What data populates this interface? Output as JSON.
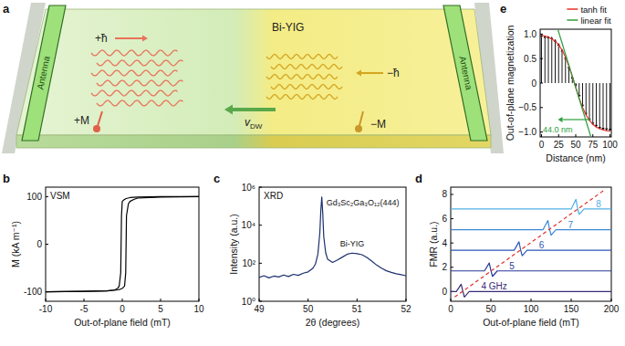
{
  "diagram": {
    "panel": "a",
    "material": "Bi-YIG",
    "antennas": [
      "Antenna",
      "Antenna"
    ],
    "spin_waves": [
      {
        "label": "+ħ",
        "color": "#e8735a"
      },
      {
        "label": "−ħ",
        "color": "#d4a520"
      }
    ],
    "domain_wall_velocity": {
      "symbol": "v",
      "subscript": "DW",
      "color": "#5aa84a"
    },
    "domains": [
      {
        "label": "+M",
        "color": "#e0604a"
      },
      {
        "label": "−M",
        "color": "#c9982a"
      }
    ]
  },
  "chart_data": [
    {
      "panel": "b",
      "type": "line",
      "annotation": "VSM",
      "x_label": "Out-of-plane field (mT)",
      "y_label": "M (kA m⁻¹)",
      "xlim": [
        -10,
        10
      ],
      "ylim": [
        -120,
        120
      ],
      "xticks": [
        -10,
        -5,
        0,
        5,
        10
      ],
      "yticks": [
        -100,
        0,
        100
      ],
      "series": [
        {
          "color": "#000000",
          "x": [
            -10,
            -5,
            -2,
            -1,
            -0.5,
            0,
            0.3,
            0.45,
            0.55,
            0.8,
            1,
            1.5,
            2,
            5,
            10
          ],
          "values": [
            -100,
            -99,
            -98,
            -97,
            -96,
            -93,
            -88,
            -60,
            60,
            85,
            90,
            94,
            97,
            99,
            100
          ]
        },
        {
          "color": "#000000",
          "x": [
            10,
            5,
            2,
            1,
            0.5,
            0.2,
            0,
            -0.1,
            -0.2,
            -0.4,
            -0.6,
            -1,
            -2,
            -5,
            -10
          ],
          "values": [
            100,
            100,
            99,
            98,
            96,
            93,
            90,
            60,
            -60,
            -88,
            -93,
            -96,
            -98,
            -99,
            -100
          ]
        }
      ]
    },
    {
      "panel": "c",
      "type": "line",
      "log": "y",
      "x_label": "2θ (degrees)",
      "y_label": "Intensity (a.u.)",
      "annotations": [
        {
          "text": "XRD"
        },
        {
          "text": "Gd₃Sc₂Ga₃O₁₂(444)",
          "x": 50.28
        },
        {
          "text": "Bi-YIG",
          "x": 50.9
        }
      ],
      "xlim": [
        49,
        52
      ],
      "ylim": [
        1,
        1000000
      ],
      "xticks": [
        49,
        50,
        51,
        52
      ],
      "yticks": [
        {
          "value": 1,
          "label": "10⁰"
        },
        {
          "value": 100,
          "label": "10²"
        },
        {
          "value": 10000,
          "label": "10⁴"
        },
        {
          "value": 1000000,
          "label": "10⁶"
        }
      ],
      "series": [
        {
          "color": "#1b2f6e",
          "x": [
            49.0,
            49.1,
            49.2,
            49.3,
            49.4,
            49.5,
            49.6,
            49.7,
            49.8,
            49.9,
            50.0,
            50.1,
            50.15,
            50.2,
            50.24,
            50.26,
            50.28,
            50.3,
            50.32,
            50.36,
            50.4,
            50.5,
            50.6,
            50.7,
            50.8,
            50.9,
            51.0,
            51.1,
            51.2,
            51.3,
            51.4,
            51.5,
            51.6,
            51.7,
            51.8,
            51.9,
            52.0
          ],
          "values": [
            18,
            22,
            17,
            21,
            19,
            24,
            20,
            26,
            23,
            30,
            35,
            55,
            90,
            300,
            4000,
            60000,
            300000,
            40000,
            2500,
            350,
            160,
            110,
            150,
            210,
            300,
            340,
            320,
            280,
            200,
            130,
            80,
            55,
            40,
            33,
            28,
            25,
            22
          ]
        }
      ]
    },
    {
      "panel": "d",
      "type": "line",
      "x_label": "Out-of-plane field (mT)",
      "y_label": "FMR (a.u.)",
      "xlim": [
        0,
        200
      ],
      "ylim": [
        -0.8,
        8.6
      ],
      "xticks": [
        0,
        50,
        100,
        150,
        200
      ],
      "yticks": [
        0,
        2,
        4,
        6,
        8
      ],
      "series": [
        {
          "name": "4 GHz",
          "color": "#3a2a78",
          "x": [
            0,
            7,
            13,
            15,
            17,
            23,
            200
          ],
          "values": [
            0,
            0,
            0.6,
            0.05,
            -0.45,
            0,
            0
          ]
        },
        {
          "name": "5",
          "color": "#28389a",
          "x": [
            0,
            42,
            48,
            50,
            52,
            58,
            200
          ],
          "values": [
            1.7,
            1.7,
            2.35,
            1.75,
            1.25,
            1.7,
            1.7
          ]
        },
        {
          "name": "6",
          "color": "#2c56b8",
          "x": [
            0,
            79,
            85,
            87,
            89,
            95,
            200
          ],
          "values": [
            3.4,
            3.4,
            4.1,
            3.45,
            2.95,
            3.4,
            3.4
          ]
        },
        {
          "name": "7",
          "color": "#3b87d4",
          "x": [
            0,
            115,
            121,
            123,
            125,
            131,
            200
          ],
          "values": [
            5.1,
            5.1,
            5.85,
            5.15,
            4.65,
            5.1,
            5.1
          ]
        },
        {
          "name": "8",
          "color": "#4fb0e6",
          "x": [
            0,
            150,
            156,
            158,
            160,
            166,
            200
          ],
          "values": [
            6.8,
            6.8,
            7.6,
            6.85,
            6.35,
            6.8,
            6.8
          ]
        },
        {
          "color": "#e0302a",
          "line_style": "dashed",
          "x": [
            5,
            190
          ],
          "values": [
            -0.45,
            8.3
          ]
        }
      ]
    },
    {
      "panel": "e",
      "type": "line",
      "legend": "top",
      "annotation": "44.0 nm",
      "x_label": "Distance (nm)",
      "y_label": "Out-of-plane magnetization",
      "xlim": [
        -2,
        102
      ],
      "ylim": [
        -1.1,
        1.1
      ],
      "xticks": [
        0,
        25,
        50,
        75,
        100
      ],
      "yticks": [
        {
          "value": -1,
          "label": "−1.0"
        },
        {
          "value": -0.5,
          "label": "−0.5"
        },
        0,
        {
          "value": 0.5,
          "label": "0.5"
        },
        {
          "value": 1,
          "label": "1.0"
        }
      ],
      "series": [
        {
          "type": "arrow",
          "color": "#000000",
          "x": [
            0,
            5,
            10,
            15,
            20,
            25,
            30,
            35,
            40,
            45,
            50,
            55,
            60,
            65,
            70,
            75,
            80,
            85,
            90,
            95,
            100
          ],
          "values": [
            1.0,
            0.98,
            0.97,
            0.95,
            0.9,
            0.82,
            0.7,
            0.55,
            0.36,
            0.15,
            -0.08,
            -0.3,
            -0.5,
            -0.66,
            -0.78,
            -0.86,
            -0.91,
            -0.95,
            -0.97,
            -0.98,
            -0.99
          ]
        },
        {
          "name": "tanh fit",
          "color": "#e8302a",
          "x": [
            0,
            5,
            10,
            15,
            20,
            25,
            30,
            35,
            40,
            45,
            50,
            55,
            60,
            65,
            70,
            75,
            80,
            85,
            90,
            95,
            100
          ],
          "values": [
            0.975,
            0.96,
            0.938,
            0.905,
            0.854,
            0.78,
            0.675,
            0.53,
            0.35,
            0.135,
            -0.09,
            -0.31,
            -0.497,
            -0.65,
            -0.76,
            -0.84,
            -0.9,
            -0.93,
            -0.956,
            -0.973,
            -0.983
          ]
        },
        {
          "name": "linear fit",
          "color": "#2e9e3e",
          "x": [
            24,
            72
          ],
          "values": [
            1.09,
            -1.09
          ]
        }
      ]
    }
  ]
}
